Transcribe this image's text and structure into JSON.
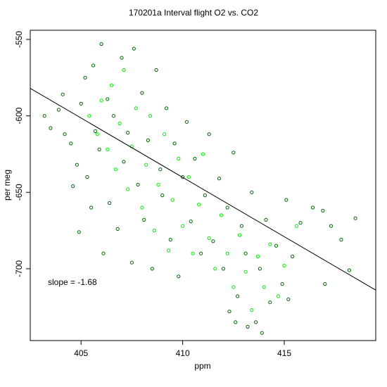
{
  "chart_data": {
    "type": "scatter",
    "title": "170201a   Interval flight O2 vs. CO2",
    "xlabel": "ppm",
    "ylabel": "per meg",
    "xlim": [
      402.5,
      419.5
    ],
    "ylim": [
      -747,
      -544
    ],
    "x_ticks": [
      405,
      410,
      415
    ],
    "y_ticks": [
      -550,
      -600,
      -650,
      -700
    ],
    "grid": false,
    "legend": "none",
    "colors": {
      "dark": "#006400",
      "bright": "#00ee00",
      "fit_line": "#000000"
    },
    "series": [
      {
        "marker": "open-circle",
        "color": "#006400",
        "points": [
          [
            403.2,
            -600
          ],
          [
            403.5,
            -608
          ],
          [
            403.9,
            -596
          ],
          [
            404.2,
            -612
          ],
          [
            404.1,
            -586
          ],
          [
            404.5,
            -618
          ],
          [
            404.8,
            -632
          ],
          [
            404.6,
            -646
          ],
          [
            404.9,
            -676
          ],
          [
            405.0,
            -592
          ],
          [
            405.2,
            -575
          ],
          [
            405.3,
            -640
          ],
          [
            405.5,
            -660
          ],
          [
            405.6,
            -567
          ],
          [
            405.7,
            -610
          ],
          [
            405.9,
            -622
          ],
          [
            406.0,
            -553
          ],
          [
            406.1,
            -690
          ],
          [
            406.3,
            -589
          ],
          [
            406.4,
            -657
          ],
          [
            406.6,
            -600
          ],
          [
            406.8,
            -674
          ],
          [
            407.0,
            -562
          ],
          [
            407.1,
            -630
          ],
          [
            407.3,
            -611
          ],
          [
            407.5,
            -696
          ],
          [
            407.6,
            -556
          ],
          [
            407.8,
            -645
          ],
          [
            408.0,
            -585
          ],
          [
            408.1,
            -668
          ],
          [
            408.3,
            -616
          ],
          [
            408.5,
            -700
          ],
          [
            408.7,
            -570
          ],
          [
            408.9,
            -635
          ],
          [
            409.0,
            -652
          ],
          [
            409.2,
            -595
          ],
          [
            409.4,
            -681
          ],
          [
            409.6,
            -618
          ],
          [
            409.8,
            -705
          ],
          [
            410.0,
            -640
          ],
          [
            410.2,
            -604
          ],
          [
            410.4,
            -669
          ],
          [
            410.6,
            -628
          ],
          [
            410.9,
            -690
          ],
          [
            411.1,
            -652
          ],
          [
            411.3,
            -612
          ],
          [
            411.5,
            -682
          ],
          [
            411.8,
            -641
          ],
          [
            412.0,
            -700
          ],
          [
            412.2,
            -660
          ],
          [
            412.5,
            -624
          ],
          [
            412.7,
            -718
          ],
          [
            412.9,
            -672
          ],
          [
            413.1,
            -690
          ],
          [
            413.4,
            -650
          ],
          [
            413.6,
            -735
          ],
          [
            413.8,
            -700
          ],
          [
            414.1,
            -668
          ],
          [
            414.3,
            -722
          ],
          [
            414.6,
            -685
          ],
          [
            414.9,
            -710
          ],
          [
            415.1,
            -655
          ],
          [
            415.4,
            -692
          ],
          [
            415.8,
            -670
          ],
          [
            416.4,
            -660
          ],
          [
            416.9,
            -662
          ],
          [
            417.3,
            -672
          ],
          [
            417.8,
            -681
          ],
          [
            418.2,
            -701
          ],
          [
            418.5,
            -667
          ],
          [
            417.0,
            -710
          ],
          [
            415.2,
            -720
          ],
          [
            413.9,
            -742
          ],
          [
            413.2,
            -738
          ],
          [
            412.6,
            -735
          ],
          [
            412.3,
            -728
          ]
        ]
      },
      {
        "marker": "open-circle",
        "color": "#00ee00",
        "points": [
          [
            405.4,
            -600
          ],
          [
            405.8,
            -612
          ],
          [
            406.0,
            -590
          ],
          [
            406.3,
            -622
          ],
          [
            406.5,
            -580
          ],
          [
            406.7,
            -635
          ],
          [
            406.9,
            -605
          ],
          [
            407.1,
            -570
          ],
          [
            407.3,
            -648
          ],
          [
            407.5,
            -620
          ],
          [
            407.7,
            -595
          ],
          [
            408.0,
            -660
          ],
          [
            408.2,
            -632
          ],
          [
            408.4,
            -600
          ],
          [
            408.6,
            -675
          ],
          [
            408.8,
            -645
          ],
          [
            409.1,
            -612
          ],
          [
            409.3,
            -688
          ],
          [
            409.5,
            -655
          ],
          [
            409.8,
            -628
          ],
          [
            410.0,
            -672
          ],
          [
            410.3,
            -640
          ],
          [
            410.5,
            -690
          ],
          [
            410.8,
            -658
          ],
          [
            411.0,
            -625
          ],
          [
            411.3,
            -680
          ],
          [
            411.6,
            -700
          ],
          [
            411.9,
            -665
          ],
          [
            412.2,
            -690
          ],
          [
            412.5,
            -712
          ],
          [
            412.8,
            -678
          ],
          [
            413.1,
            -702
          ],
          [
            413.4,
            -727
          ],
          [
            413.7,
            -692
          ],
          [
            414.0,
            -712
          ],
          [
            414.3,
            -684
          ],
          [
            414.7,
            -718
          ],
          [
            415.0,
            -698
          ],
          [
            415.6,
            -672
          ]
        ]
      }
    ],
    "fit_line": {
      "x": [
        402.5,
        419.5
      ],
      "y": [
        -582,
        -714
      ]
    },
    "annotation": "slope =  -1.68"
  }
}
